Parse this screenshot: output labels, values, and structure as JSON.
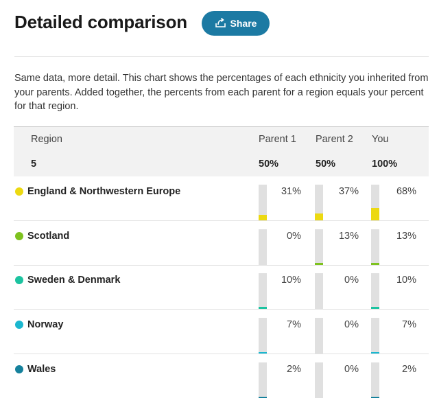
{
  "header": {
    "title": "Detailed comparison",
    "share_label": "Share"
  },
  "description": "Same data, more detail. This chart shows the percentages of each ethnicity you inherited from your parents. Added together, the percents from each parent for a region equals your percent for that region.",
  "table": {
    "headers": {
      "region": "Region",
      "parent1": "Parent 1",
      "parent2": "Parent 2",
      "you": "You"
    },
    "totals": {
      "region_count": "5",
      "parent1": "50%",
      "parent2": "50%",
      "you": "100%"
    },
    "rows": [
      {
        "name": "England & Northwestern Europe",
        "color": "#ecd911",
        "parent1": "31%",
        "parent2": "37%",
        "you": "68%",
        "parent1_value": 31,
        "parent2_value": 37,
        "you_value": 68
      },
      {
        "name": "Scotland",
        "color": "#7ec21f",
        "parent1": "0%",
        "parent2": "13%",
        "you": "13%",
        "parent1_value": 0,
        "parent2_value": 13,
        "you_value": 13
      },
      {
        "name": "Sweden & Denmark",
        "color": "#1cc3a0",
        "parent1": "10%",
        "parent2": "0%",
        "you": "10%",
        "parent1_value": 10,
        "parent2_value": 0,
        "you_value": 10
      },
      {
        "name": "Norway",
        "color": "#1bb7cf",
        "parent1": "7%",
        "parent2": "0%",
        "you": "7%",
        "parent1_value": 7,
        "parent2_value": 0,
        "you_value": 7
      },
      {
        "name": "Wales",
        "color": "#15819c",
        "parent1": "2%",
        "parent2": "0%",
        "you": "2%",
        "parent1_value": 2,
        "parent2_value": 0,
        "you_value": 2
      }
    ]
  }
}
